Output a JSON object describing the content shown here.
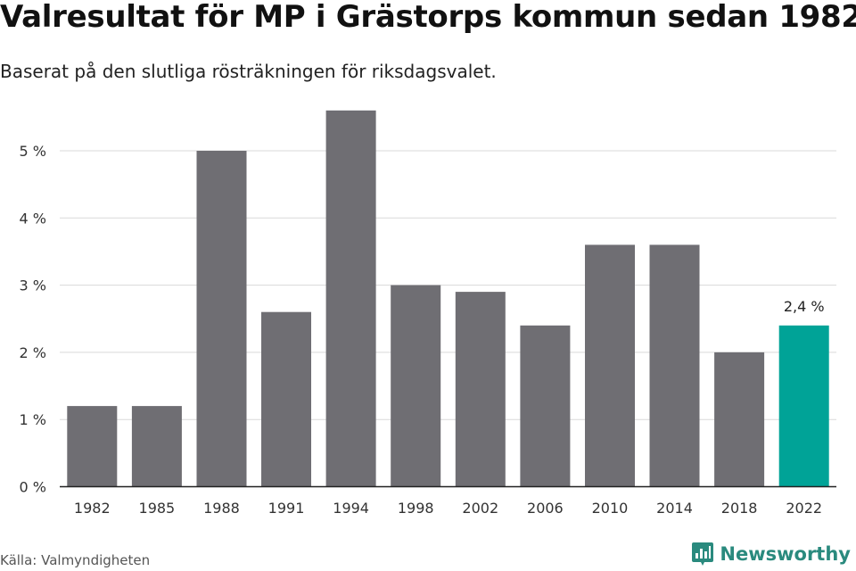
{
  "title": "Valresultat för MP i Grästorps kommun sedan 1982",
  "subtitle": "Baserat på den slutliga rösträkningen för riksdagsvalet.",
  "source": "Källa: Valmyndigheten",
  "brand": {
    "name": "Newsworthy",
    "icon": "newsworthy-logo-icon"
  },
  "colors": {
    "bar": "#6f6e73",
    "highlight": "#00a397",
    "grid": "#d9d9d9",
    "axis": "#222222",
    "brand": "#2a8a7e"
  },
  "chart_data": {
    "type": "bar",
    "categories": [
      "1982",
      "1985",
      "1988",
      "1991",
      "1994",
      "1998",
      "2002",
      "2006",
      "2010",
      "2014",
      "2018",
      "2022"
    ],
    "values": [
      1.2,
      1.2,
      5.0,
      2.6,
      5.6,
      3.0,
      2.9,
      2.4,
      3.6,
      3.6,
      2.0,
      2.4
    ],
    "unit": "%",
    "ylim": [
      0,
      5.6
    ],
    "yticks": [
      "0 %",
      "1 %",
      "2 %",
      "3 %",
      "4 %",
      "5 %"
    ],
    "highlight_index": 11,
    "data_labels": [
      {
        "index": 11,
        "text": "2,4 %"
      }
    ],
    "grid": true,
    "legend": "none"
  }
}
